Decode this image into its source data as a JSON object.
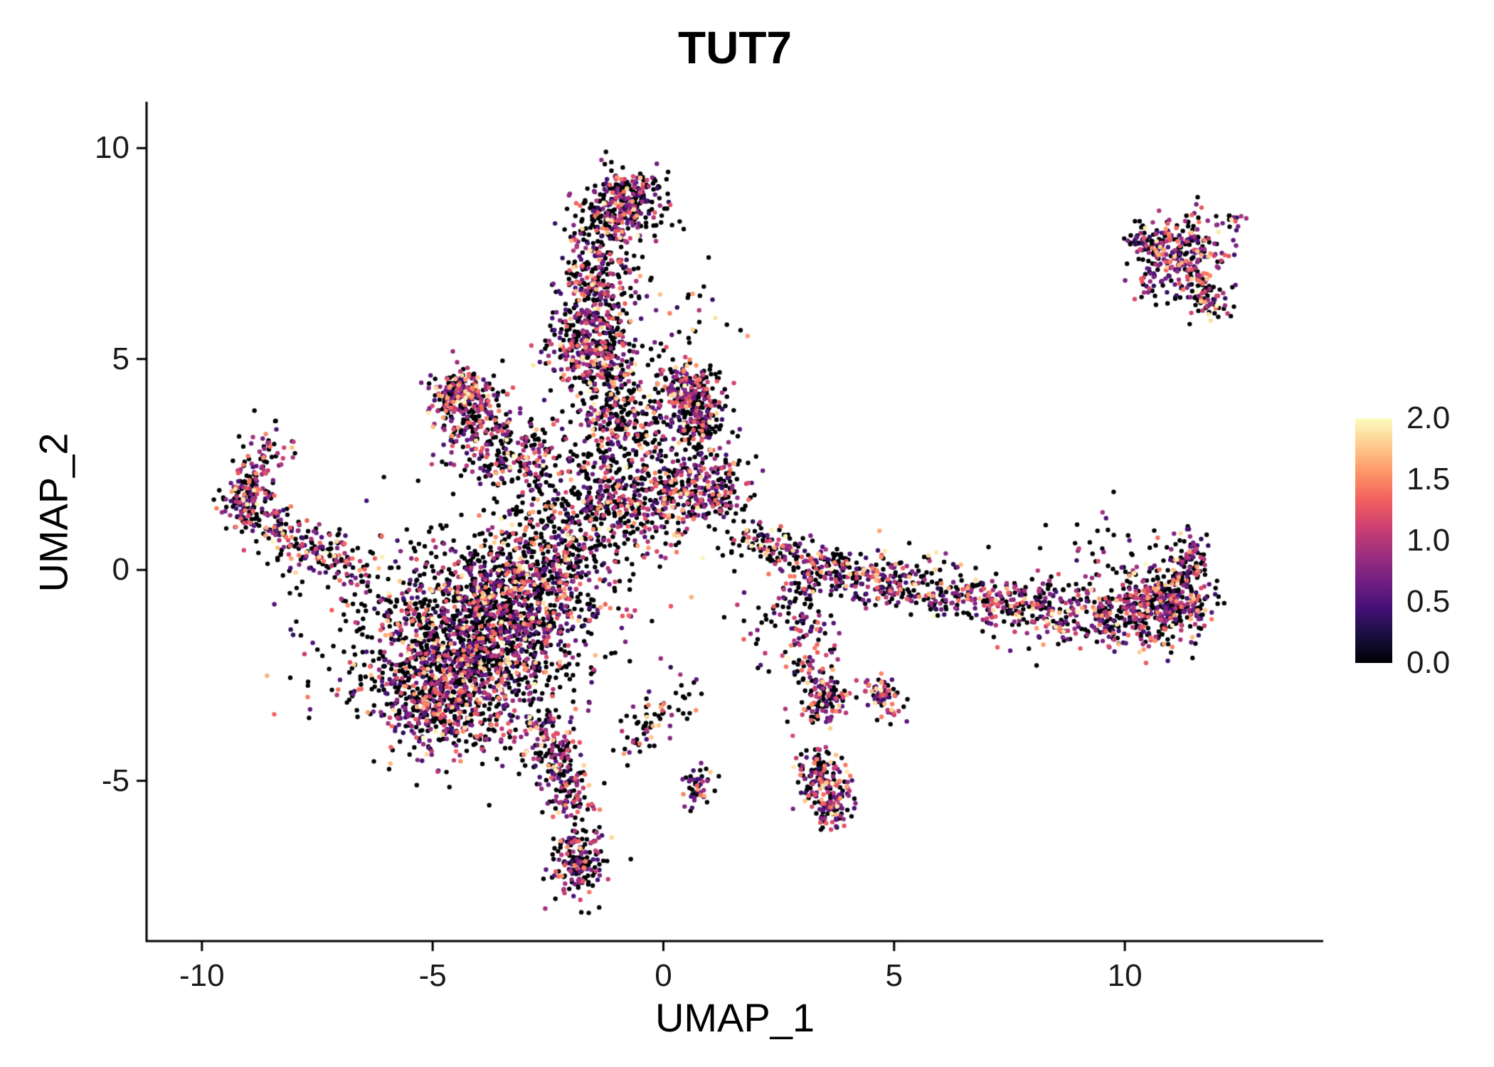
{
  "title": "TUT7",
  "axes": {
    "x_label": "UMAP_1",
    "y_label": "UMAP_2",
    "x_ticks": [
      -10,
      -5,
      0,
      5,
      10
    ],
    "y_ticks": [
      -5,
      0,
      5,
      10
    ]
  },
  "chart_data": {
    "type": "scatter",
    "title": "TUT7",
    "xlabel": "UMAP_1",
    "ylabel": "UMAP_2",
    "xlim": [
      -11.2,
      14.3
    ],
    "ylim": [
      -8.8,
      11.1
    ],
    "grid": false,
    "background": "#ffffff",
    "point_radius": 3.2,
    "seed": 7,
    "color_scale": {
      "title": "",
      "min": 0.0,
      "max": 2.0,
      "tick_labels": [
        "2.0",
        "1.5",
        "1.0",
        "0.5",
        "0.0"
      ],
      "palette": "magma",
      "gradient_stops": [
        "#000004",
        "#180f3e",
        "#451077",
        "#721f81",
        "#9f2f7f",
        "#cd4071",
        "#f1605d",
        "#fd9567",
        "#feca8d",
        "#fcfdbf"
      ]
    },
    "expression_mix": {
      "note": "fraction of zero-expression (black) cells per cluster is z; nonzero values mostly 0.3-1.5 with few up to 2.0",
      "nonzero_bands": [
        {
          "prob": 0.6,
          "range": [
            0.3,
            1.0
          ]
        },
        {
          "prob": 0.27,
          "range": [
            1.0,
            1.5
          ]
        },
        {
          "prob": 0.13,
          "range": [
            1.5,
            2.0
          ]
        }
      ]
    },
    "clusters": [
      {
        "name": "main-body",
        "type": "g",
        "cx": -4.3,
        "cy": -1.9,
        "sx": 1.15,
        "sy": 1.15,
        "n": 1500,
        "z": 0.55
      },
      {
        "name": "main-upper",
        "type": "g",
        "cx": -3.1,
        "cy": -0.6,
        "sx": 0.9,
        "sy": 0.8,
        "n": 500,
        "z": 0.5
      },
      {
        "name": "main-lower",
        "type": "g",
        "cx": -4.9,
        "cy": -3.3,
        "sx": 0.6,
        "sy": 0.5,
        "n": 250,
        "z": 0.55
      },
      {
        "name": "tail-down",
        "type": "s",
        "x1": -2.6,
        "y1": -3.6,
        "x2": -1.9,
        "y2": -5.6,
        "w": 0.3,
        "n": 220,
        "z": 0.45
      },
      {
        "name": "bottom-blob",
        "type": "g",
        "cx": -1.85,
        "cy": -6.9,
        "sx": 0.3,
        "sy": 0.45,
        "n": 170,
        "z": 0.45
      },
      {
        "name": "left-arm",
        "type": "s",
        "x1": -6.6,
        "y1": -0.1,
        "x2": -9.3,
        "y2": 1.5,
        "w": 0.3,
        "n": 230,
        "z": 0.5
      },
      {
        "name": "left-hook",
        "type": "s",
        "x1": -9.2,
        "y1": 1.7,
        "x2": -8.5,
        "y2": 3.1,
        "w": 0.25,
        "n": 110,
        "z": 0.5
      },
      {
        "name": "arm-end",
        "type": "g",
        "cx": -9.0,
        "cy": 1.6,
        "sx": 0.3,
        "sy": 0.3,
        "n": 60,
        "z": 0.5
      },
      {
        "name": "triangle-top",
        "type": "g",
        "cx": -4.35,
        "cy": 4.25,
        "sx": 0.28,
        "sy": 0.22,
        "n": 160,
        "z": 0.45
      },
      {
        "name": "triangle-fill",
        "type": "s",
        "x1": -4.4,
        "y1": 4.1,
        "x2": -3.2,
        "y2": 2.4,
        "w": 0.45,
        "n": 200,
        "z": 0.5
      },
      {
        "name": "triangle-left",
        "type": "s",
        "x1": -4.6,
        "y1": 4.0,
        "x2": -4.1,
        "y2": 2.9,
        "w": 0.3,
        "n": 90,
        "z": 0.5
      },
      {
        "name": "below-triangle",
        "type": "g",
        "cx": -2.9,
        "cy": 2.6,
        "sx": 0.5,
        "sy": 0.5,
        "n": 90,
        "z": 0.55
      },
      {
        "name": "column-top",
        "type": "g",
        "cx": -0.75,
        "cy": 8.9,
        "sx": 0.38,
        "sy": 0.3,
        "n": 190,
        "z": 0.5
      },
      {
        "name": "column-top2",
        "type": "g",
        "cx": -1.15,
        "cy": 8.25,
        "sx": 0.45,
        "sy": 0.35,
        "n": 150,
        "z": 0.55
      },
      {
        "name": "column-upper",
        "type": "s",
        "x1": -1.35,
        "y1": 7.7,
        "x2": -1.6,
        "y2": 5.5,
        "w": 0.38,
        "n": 330,
        "z": 0.5
      },
      {
        "name": "column-mid-blob",
        "type": "g",
        "cx": -1.55,
        "cy": 5.15,
        "sx": 0.45,
        "sy": 0.35,
        "n": 200,
        "z": 0.45
      },
      {
        "name": "column-lower",
        "type": "s",
        "x1": -1.35,
        "y1": 4.9,
        "x2": -0.75,
        "y2": 2.7,
        "w": 0.5,
        "n": 280,
        "z": 0.55
      },
      {
        "name": "column-right-sparse",
        "type": "g",
        "cx": -0.3,
        "cy": 3.6,
        "sx": 0.9,
        "sy": 1.1,
        "n": 170,
        "z": 0.6
      },
      {
        "name": "right-upper-blob",
        "type": "g",
        "cx": 0.55,
        "cy": 4.3,
        "sx": 0.3,
        "sy": 0.33,
        "n": 170,
        "z": 0.45
      },
      {
        "name": "right-mid-blob",
        "type": "g",
        "cx": 0.75,
        "cy": 3.45,
        "sx": 0.3,
        "sy": 0.4,
        "n": 140,
        "z": 0.5
      },
      {
        "name": "center-dense-blob",
        "type": "g",
        "cx": 0.8,
        "cy": 1.95,
        "sx": 0.5,
        "sy": 0.4,
        "n": 260,
        "z": 0.45
      },
      {
        "name": "center-scatter",
        "type": "g",
        "cx": -0.5,
        "cy": 1.35,
        "sx": 0.95,
        "sy": 0.5,
        "n": 240,
        "z": 0.55
      },
      {
        "name": "bridge",
        "type": "g",
        "cx": -2.3,
        "cy": 0.4,
        "sx": 0.8,
        "sy": 0.9,
        "n": 320,
        "z": 0.55
      },
      {
        "name": "bridge2",
        "type": "g",
        "cx": -1.4,
        "cy": 1.9,
        "sx": 0.6,
        "sy": 0.6,
        "n": 150,
        "z": 0.55
      },
      {
        "name": "band-start",
        "type": "s",
        "x1": 1.75,
        "y1": 0.75,
        "x2": 3.0,
        "y2": 0.3,
        "w": 0.22,
        "n": 110,
        "z": 0.5
      },
      {
        "name": "band-a",
        "type": "s",
        "x1": 3.0,
        "y1": 0.15,
        "x2": 5.2,
        "y2": -0.35,
        "w": 0.3,
        "n": 240,
        "z": 0.45
      },
      {
        "name": "band-b",
        "type": "s",
        "x1": 5.2,
        "y1": -0.4,
        "x2": 8.2,
        "y2": -0.85,
        "w": 0.33,
        "n": 280,
        "z": 0.5
      },
      {
        "name": "band-c",
        "type": "s",
        "x1": 8.2,
        "y1": -1.05,
        "x2": 11.3,
        "y2": -0.85,
        "w": 0.45,
        "n": 430,
        "z": 0.45
      },
      {
        "name": "band-right-dense",
        "type": "g",
        "cx": 10.9,
        "cy": -0.9,
        "sx": 0.5,
        "sy": 0.4,
        "n": 200,
        "z": 0.45
      },
      {
        "name": "band-hook",
        "type": "s",
        "x1": 11.25,
        "y1": -0.5,
        "x2": 11.4,
        "y2": 0.85,
        "w": 0.22,
        "n": 110,
        "z": 0.45
      },
      {
        "name": "band-above-sparse",
        "type": "g",
        "cx": 9.6,
        "cy": 0.6,
        "sx": 0.9,
        "sy": 0.5,
        "n": 35,
        "z": 0.7
      },
      {
        "name": "streak-down-1",
        "type": "s",
        "x1": 2.95,
        "y1": -0.5,
        "x2": 3.45,
        "y2": -3.3,
        "w": 0.28,
        "n": 150,
        "z": 0.5
      },
      {
        "name": "streak1-end",
        "type": "g",
        "cx": 3.45,
        "cy": -3.2,
        "sx": 0.28,
        "sy": 0.28,
        "n": 70,
        "z": 0.4
      },
      {
        "name": "streak-down-2",
        "type": "s",
        "x1": 4.55,
        "y1": -2.6,
        "x2": 5.0,
        "y2": -3.35,
        "w": 0.2,
        "n": 70,
        "z": 0.4
      },
      {
        "name": "lower-streak",
        "type": "s",
        "x1": 3.35,
        "y1": -4.45,
        "x2": 3.65,
        "y2": -5.85,
        "w": 0.25,
        "n": 210,
        "z": 0.35
      },
      {
        "name": "tiny-pair",
        "type": "g",
        "cx": 0.75,
        "cy": -5.2,
        "sx": 0.16,
        "sy": 0.28,
        "n": 45,
        "z": 0.45
      },
      {
        "name": "island-core",
        "type": "g",
        "cx": 11.2,
        "cy": 7.35,
        "sx": 0.55,
        "sy": 0.5,
        "n": 260,
        "z": 0.4
      },
      {
        "name": "island-tail",
        "type": "s",
        "x1": 11.5,
        "y1": 6.8,
        "x2": 11.95,
        "y2": 6.15,
        "w": 0.2,
        "n": 70,
        "z": 0.4
      },
      {
        "name": "island-left",
        "type": "g",
        "cx": 10.45,
        "cy": 7.75,
        "sx": 0.25,
        "sy": 0.12,
        "n": 25,
        "z": 0.5
      },
      {
        "name": "island-outlier",
        "type": "g",
        "cx": 12.35,
        "cy": 8.3,
        "sx": 0.12,
        "sy": 0.1,
        "n": 12,
        "z": 0.4
      },
      {
        "name": "island-top-edge",
        "type": "s",
        "x1": 10.3,
        "y1": 7.7,
        "x2": 11.0,
        "y2": 7.9,
        "w": 0.15,
        "n": 40,
        "z": 0.5
      },
      {
        "name": "sparse-upper-center",
        "type": "g",
        "cx": -0.2,
        "cy": 6.5,
        "sx": 1.0,
        "sy": 1.5,
        "n": 40,
        "z": 0.6
      },
      {
        "name": "sparse-left",
        "type": "g",
        "cx": -6.5,
        "cy": -1.0,
        "sx": 1.2,
        "sy": 1.2,
        "n": 60,
        "z": 0.7
      },
      {
        "name": "sparse-below-center",
        "type": "s",
        "x1": -0.8,
        "y1": -4.2,
        "x2": 0.4,
        "y2": -2.9,
        "w": 0.3,
        "n": 70,
        "z": 0.6
      },
      {
        "name": "sparse-band-start",
        "type": "g",
        "cx": 2.4,
        "cy": -1.3,
        "sx": 0.5,
        "sy": 0.7,
        "n": 40,
        "z": 0.6
      }
    ]
  }
}
